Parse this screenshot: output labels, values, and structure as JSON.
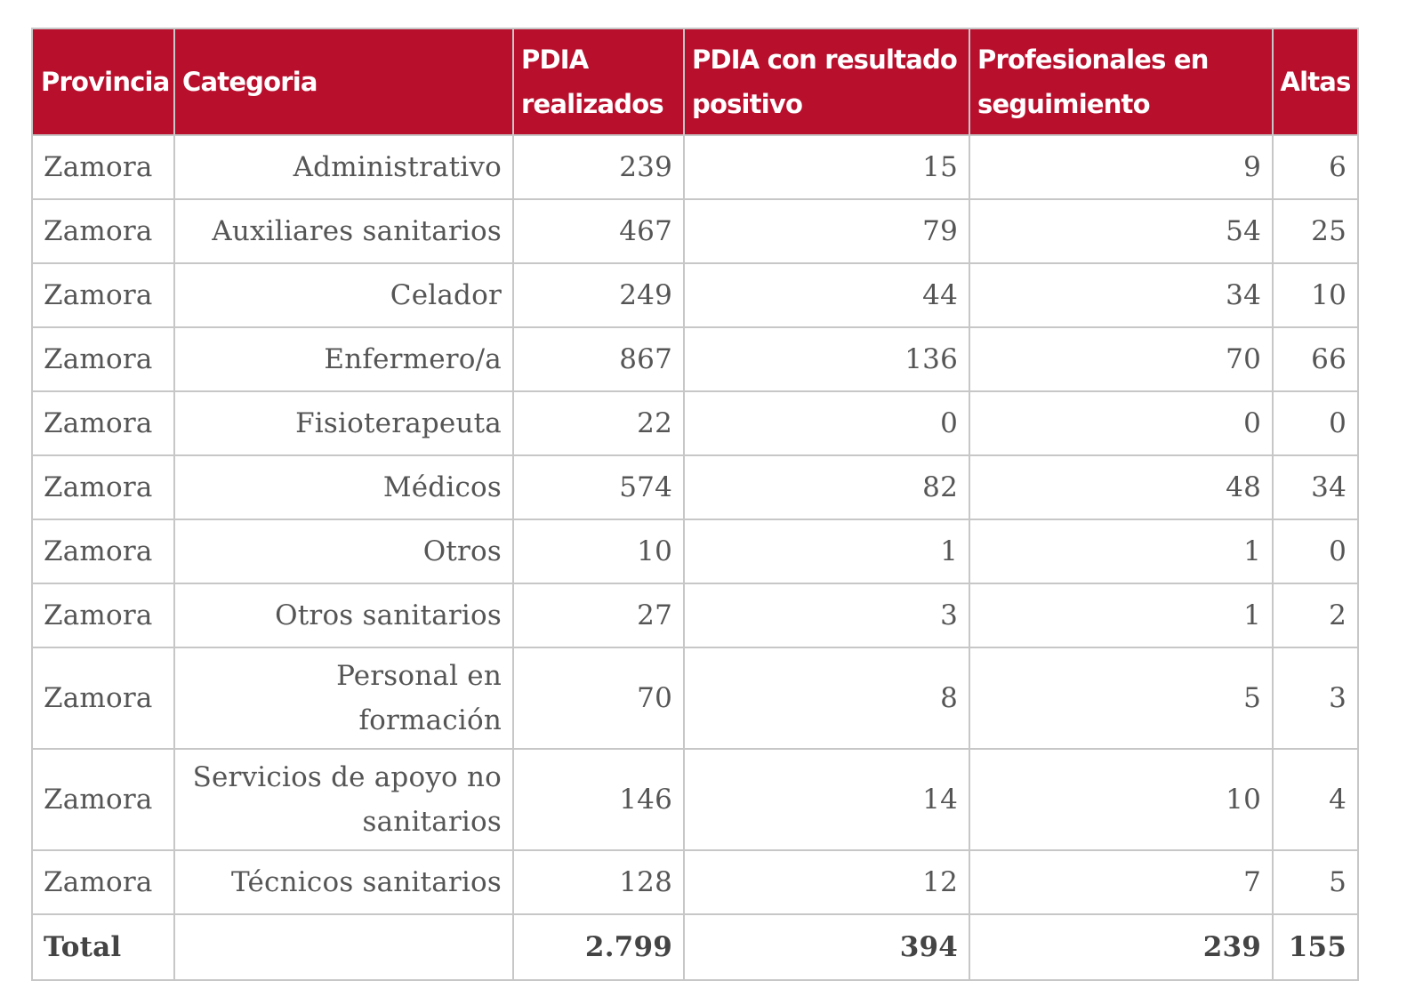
{
  "table": {
    "headers": [
      "Provincia",
      "Categoria",
      "PDIA realizados",
      "PDIA con resultado positivo",
      "Profesionales en seguimiento",
      "Altas"
    ],
    "rows": [
      [
        "Zamora",
        "Administrativo",
        "239",
        "15",
        "9",
        "6"
      ],
      [
        "Zamora",
        "Auxiliares sanitarios",
        "467",
        "79",
        "54",
        "25"
      ],
      [
        "Zamora",
        "Celador",
        "249",
        "44",
        "34",
        "10"
      ],
      [
        "Zamora",
        "Enfermero/a",
        "867",
        "136",
        "70",
        "66"
      ],
      [
        "Zamora",
        "Fisioterapeuta",
        "22",
        "0",
        "0",
        "0"
      ],
      [
        "Zamora",
        "Médicos",
        "574",
        "82",
        "48",
        "34"
      ],
      [
        "Zamora",
        "Otros",
        "10",
        "1",
        "1",
        "0"
      ],
      [
        "Zamora",
        "Otros sanitarios",
        "27",
        "3",
        "1",
        "2"
      ],
      [
        "Zamora",
        "Personal en formación",
        "70",
        "8",
        "5",
        "3"
      ],
      [
        "Zamora",
        "Servicios de apoyo no sanitarios",
        "146",
        "14",
        "10",
        "4"
      ],
      [
        "Zamora",
        "Técnicos sanitarios",
        "128",
        "12",
        "7",
        "5"
      ]
    ],
    "total": [
      "Total",
      "",
      "2.799",
      "394",
      "239",
      "155"
    ]
  },
  "colors": {
    "header_background": "#b80f2d",
    "header_text": "#ffffff",
    "border": "#c7c7c7",
    "body_text": "#555555"
  }
}
